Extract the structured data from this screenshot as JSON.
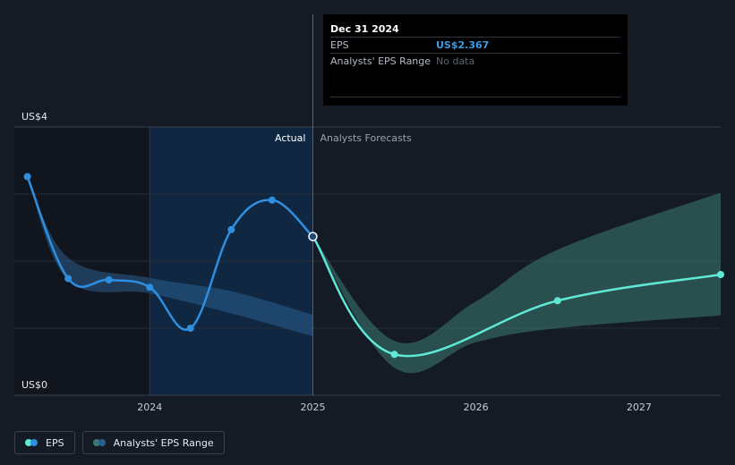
{
  "chart_data": {
    "type": "line",
    "y_axis": {
      "min": 0,
      "max": 4,
      "labels": [
        "US$4",
        "US$0"
      ]
    },
    "x_axis": {
      "min": 2023.17,
      "max": 2027.5,
      "ticks": [
        2024,
        2025,
        2026,
        2027
      ],
      "tick_labels": [
        "2024",
        "2025",
        "2026",
        "2027"
      ]
    },
    "divider_x": 2025.0,
    "highlight_start_x": 2024.0,
    "section_labels": {
      "actual": "Actual",
      "forecast": "Analysts Forecasts"
    },
    "series": [
      {
        "name": "EPS",
        "type": "actual",
        "color": "#2e8ee0",
        "points": [
          {
            "x": 2023.25,
            "y": 3.26
          },
          {
            "x": 2023.5,
            "y": 1.74
          },
          {
            "x": 2023.75,
            "y": 1.72
          },
          {
            "x": 2024.0,
            "y": 1.61
          },
          {
            "x": 2024.25,
            "y": 1.0
          },
          {
            "x": 2024.5,
            "y": 2.47
          },
          {
            "x": 2024.75,
            "y": 2.91
          },
          {
            "x": 2025.0,
            "y": 2.367
          }
        ]
      },
      {
        "name": "EPS Forecast",
        "type": "forecast",
        "color": "#5ee8d5",
        "points": [
          {
            "x": 2025.0,
            "y": 2.367
          },
          {
            "x": 2025.5,
            "y": 0.61
          },
          {
            "x": 2026.5,
            "y": 1.41
          },
          {
            "x": 2027.5,
            "y": 1.8
          }
        ]
      },
      {
        "name": "Analysts' EPS Range (past)",
        "type": "range",
        "color": "#2b5f8e",
        "upper": [
          {
            "x": 2023.25,
            "y": 3.26
          },
          {
            "x": 2023.5,
            "y": 2.05
          },
          {
            "x": 2024.0,
            "y": 1.75
          },
          {
            "x": 2024.5,
            "y": 1.55
          },
          {
            "x": 2025.0,
            "y": 1.2
          }
        ],
        "lower": [
          {
            "x": 2023.25,
            "y": 3.26
          },
          {
            "x": 2023.5,
            "y": 1.72
          },
          {
            "x": 2024.0,
            "y": 1.52
          },
          {
            "x": 2024.5,
            "y": 1.22
          },
          {
            "x": 2025.0,
            "y": 0.88
          }
        ]
      },
      {
        "name": "Analysts' EPS Range (forecast)",
        "type": "range",
        "color": "#3b7a72",
        "upper": [
          {
            "x": 2025.0,
            "y": 2.367
          },
          {
            "x": 2025.5,
            "y": 0.81
          },
          {
            "x": 2026.0,
            "y": 1.4
          },
          {
            "x": 2026.5,
            "y": 2.17
          },
          {
            "x": 2027.5,
            "y": 3.02
          }
        ],
        "lower": [
          {
            "x": 2025.0,
            "y": 2.367
          },
          {
            "x": 2025.5,
            "y": 0.41
          },
          {
            "x": 2026.0,
            "y": 0.79
          },
          {
            "x": 2026.5,
            "y": 1.0
          },
          {
            "x": 2027.5,
            "y": 1.19
          }
        ]
      }
    ],
    "gridlines_y": [
      4,
      3,
      2,
      1,
      0
    ]
  },
  "tooltip": {
    "date": "Dec 31 2024",
    "eps_label": "EPS",
    "eps_value": "US$2.367",
    "range_label": "Analysts' EPS Range",
    "range_value": "No data"
  },
  "legend": {
    "eps_label": "EPS",
    "range_label": "Analysts' EPS Range",
    "eps_colors": [
      "#5ee8d5",
      "#2e8ee0"
    ],
    "range_colors": [
      "#3b7a72",
      "#2b5f8e"
    ]
  }
}
